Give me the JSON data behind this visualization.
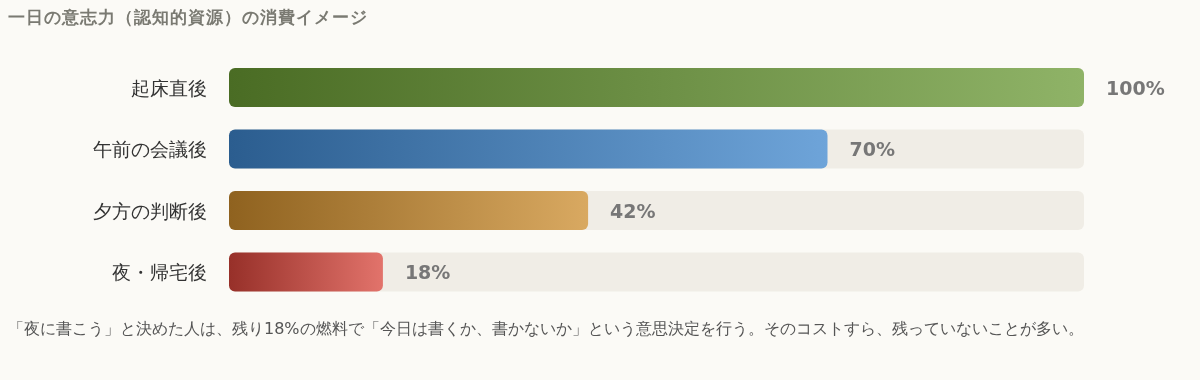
{
  "chart_data": {
    "type": "bar",
    "orientation": "horizontal",
    "title": "一日の意志力（認知的資源）の消費イメージ",
    "categories": [
      "起床直後",
      "午前の会議後",
      "夕方の判断後",
      "夜・帰宅後"
    ],
    "values": [
      100,
      70,
      42,
      18
    ],
    "value_labels": [
      "100%",
      "70%",
      "42%",
      "18%"
    ],
    "colors": [
      "#6a9a34",
      "#3d85cc",
      "#cc8c2c",
      "#d8443a"
    ],
    "xlim": [
      0,
      100
    ],
    "annotations": [
      "「夜に書こう」と決めた人は、残り18%の燃料で「今日は書くか、書かないか」という意思決定を行う。そのコストすら、残っていないことが多い。"
    ]
  }
}
